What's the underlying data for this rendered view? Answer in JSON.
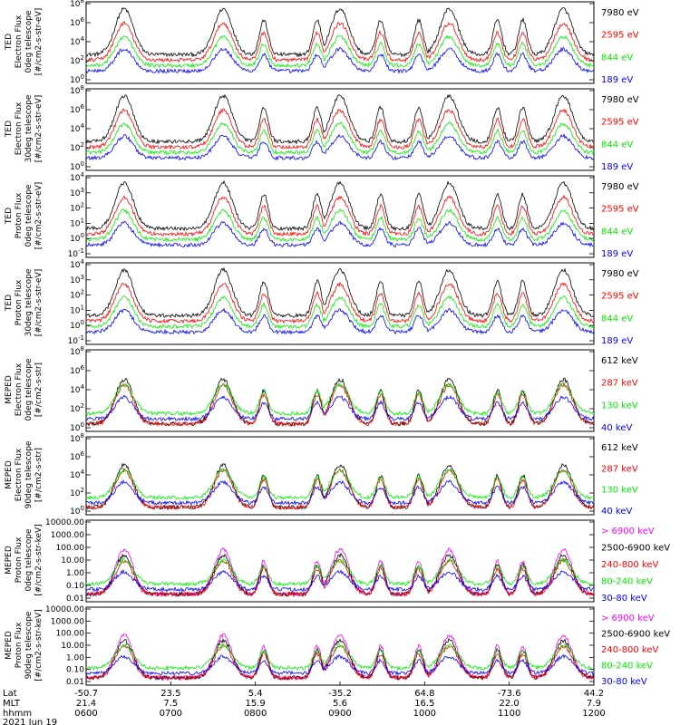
{
  "chart_data": {
    "type": "line",
    "date": "2021 Jun 19",
    "x_rows": {
      "lat": {
        "label": "Lat",
        "values": [
          "-50.7",
          "23.5",
          "5.4",
          "-35.2",
          "64.8",
          "-73.6",
          "44.2"
        ]
      },
      "mlt": {
        "label": "MLT",
        "values": [
          "21.4",
          "7.5",
          "15.9",
          "5.6",
          "16.5",
          "22.0",
          "7.9"
        ]
      },
      "hhmm": {
        "label": "hhmm",
        "values": [
          "0600",
          "0700",
          "0800",
          "0900",
          "1000",
          "1100",
          "1200"
        ]
      }
    },
    "panels": [
      {
        "ylabel": [
          "TED",
          "Electron Flux",
          "0deg telescope",
          "[#/cm2-s-str-eV]"
        ],
        "ticks": [
          "10^8",
          "10^6",
          "10^4",
          "10^2",
          "10^0"
        ],
        "legend": [
          {
            "label": "7980 eV",
            "color": "#000000"
          },
          {
            "label": "2595 eV",
            "color": "#ff0000"
          },
          {
            "label": "844 eV",
            "color": "#00ee00"
          },
          {
            "label": "189 eV",
            "color": "#0000ff"
          }
        ]
      },
      {
        "ylabel": [
          "TED",
          "Electron Flux",
          "30deg telescope",
          "[#/cm2-s-str-eV]"
        ],
        "ticks": [
          "10^8",
          "10^6",
          "10^4",
          "10^2",
          "10^0"
        ],
        "legend": [
          {
            "label": "7980 eV",
            "color": "#000000"
          },
          {
            "label": "2595 eV",
            "color": "#ff0000"
          },
          {
            "label": "844 eV",
            "color": "#00ee00"
          },
          {
            "label": "189 eV",
            "color": "#0000ff"
          }
        ]
      },
      {
        "ylabel": [
          "TED",
          "Proton Flux",
          "0deg telescope",
          "[#/cm2-s-str-eV]"
        ],
        "ticks": [
          "10^4",
          "10^3",
          "10^2",
          "10^1",
          "10^0",
          "10^-1"
        ],
        "legend": [
          {
            "label": "7980 eV",
            "color": "#000000"
          },
          {
            "label": "2595 eV",
            "color": "#ff0000"
          },
          {
            "label": "844 eV",
            "color": "#00ee00"
          },
          {
            "label": "189 eV",
            "color": "#0000ff"
          }
        ]
      },
      {
        "ylabel": [
          "TED",
          "Proton Flux",
          "30deg telescope",
          "[#/cm2-s-str-eV]"
        ],
        "ticks": [
          "10^4",
          "10^3",
          "10^2",
          "10^1",
          "10^0",
          "10^-1"
        ],
        "legend": [
          {
            "label": "7980 eV",
            "color": "#000000"
          },
          {
            "label": "2595 eV",
            "color": "#ff0000"
          },
          {
            "label": "844 eV",
            "color": "#00ee00"
          },
          {
            "label": "189 eV",
            "color": "#0000ff"
          }
        ]
      },
      {
        "ylabel": [
          "MEPED",
          "Electron Flux",
          "0deg telescope",
          "[#/cm2-s-str]"
        ],
        "ticks": [
          "10^8",
          "10^6",
          "10^4",
          "10^2",
          "10^0"
        ],
        "legend": [
          {
            "label": "612 keV",
            "color": "#000000"
          },
          {
            "label": "287 keV",
            "color": "#ff0000"
          },
          {
            "label": "130 keV",
            "color": "#00ee00"
          },
          {
            "label": "40 keV",
            "color": "#0000ff"
          }
        ]
      },
      {
        "ylabel": [
          "MEPED",
          "Electron Flux",
          "90deg telescope",
          "[#/cm2-s-str]"
        ],
        "ticks": [
          "10^8",
          "10^6",
          "10^4",
          "10^2",
          "10^0"
        ],
        "legend": [
          {
            "label": "612 keV",
            "color": "#000000"
          },
          {
            "label": "287 keV",
            "color": "#ff0000"
          },
          {
            "label": "130 keV",
            "color": "#00ee00"
          },
          {
            "label": "40 keV",
            "color": "#0000ff"
          }
        ]
      },
      {
        "ylabel": [
          "MEPED",
          "Proton Flux",
          "0deg telescope",
          "[#/cm2-s-str-keV]"
        ],
        "ticks": [
          "10000.00",
          "1000.00",
          "100.00",
          "10.00",
          "1.00",
          "0.10",
          "0.01"
        ],
        "legend": [
          {
            "label": "> 6900 keV",
            "color": "#ff00ff"
          },
          {
            "label": "2500-6900 keV",
            "color": "#000000"
          },
          {
            "label": "240-800 keV",
            "color": "#ff0000"
          },
          {
            "label": "80-240 keV",
            "color": "#00ee00"
          },
          {
            "label": "30-80 keV",
            "color": "#0000ff"
          }
        ]
      },
      {
        "ylabel": [
          "MEPED",
          "Proton Flux",
          "90deg telescope",
          "[#/cm2-s-str-keV]"
        ],
        "ticks": [
          "10000.00",
          "1000.00",
          "100.00",
          "10.00",
          "1.00",
          "0.10",
          "0.01"
        ],
        "legend": [
          {
            "label": "> 6900 keV",
            "color": "#ff00ff"
          },
          {
            "label": "2500-6900 keV",
            "color": "#000000"
          },
          {
            "label": "240-800 keV",
            "color": "#ff0000"
          },
          {
            "label": "80-240 keV",
            "color": "#00ee00"
          },
          {
            "label": "30-80 keV",
            "color": "#0000ff"
          }
        ]
      }
    ]
  }
}
